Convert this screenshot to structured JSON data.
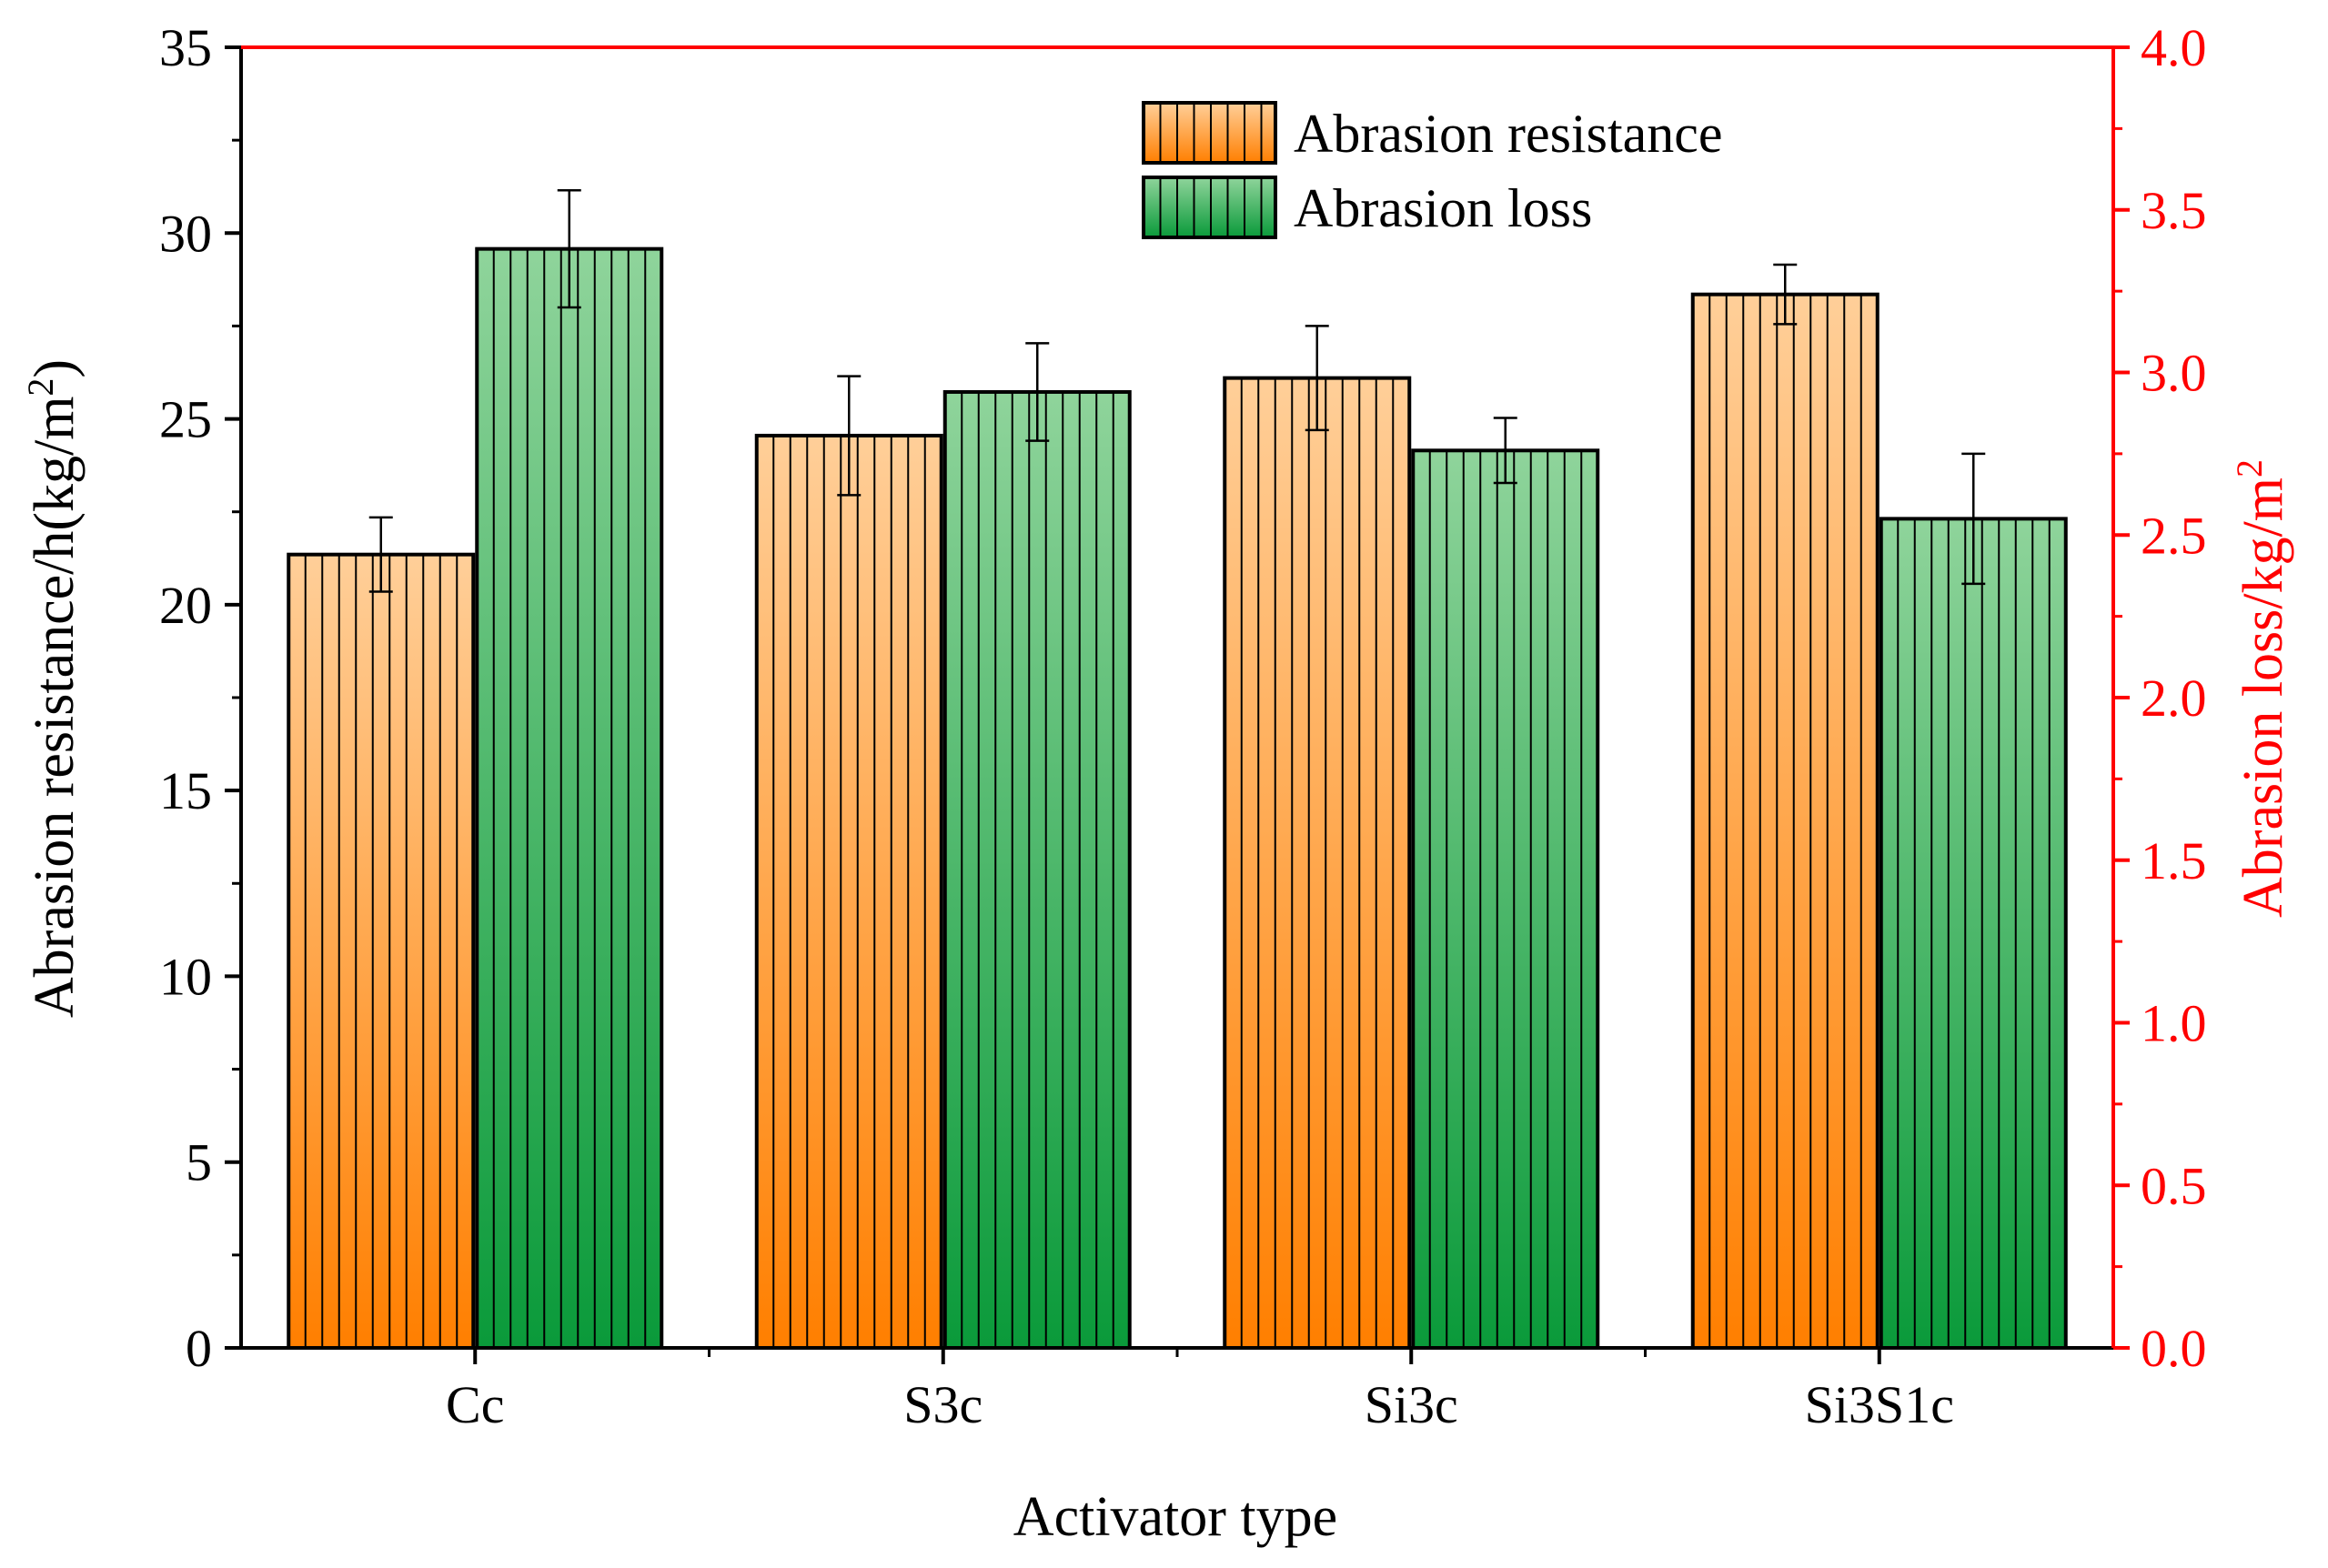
{
  "chart_data": {
    "type": "bar",
    "xlabel": "Activator type",
    "categories": [
      "Cc",
      "S3c",
      "Si3c",
      "Si3S1c"
    ],
    "y_left": {
      "label": "Abrasion resistance/h(kg/m",
      "label_sup": "2",
      "label_close": ")",
      "ylim": [
        0,
        35
      ],
      "major_ticks": [
        0,
        5,
        10,
        15,
        20,
        25,
        30,
        35
      ],
      "tick_labels": [
        "0",
        "5",
        "10",
        "15",
        "20",
        "25",
        "30",
        "35"
      ]
    },
    "y_right": {
      "label": "Abrasion loss/kg/m",
      "label_sup": "2",
      "ylim": [
        0,
        4.0
      ],
      "major_ticks": [
        0,
        0.5,
        1.0,
        1.5,
        2.0,
        2.5,
        3.0,
        3.5,
        4.0
      ],
      "tick_labels": [
        "0.0",
        "0.5",
        "1.0",
        "1.5",
        "2.0",
        "2.5",
        "3.0",
        "3.5",
        "4.0"
      ]
    },
    "series": [
      {
        "name": "Abrasion resistance",
        "axis": "left",
        "values": [
          21.35,
          24.55,
          26.1,
          28.35
        ],
        "errors": [
          1.0,
          1.6,
          1.4,
          0.8
        ],
        "gradient": [
          "#ffcf99",
          "#ff7f00"
        ]
      },
      {
        "name": "Abrasion loss",
        "axis": "right",
        "values": [
          3.38,
          2.94,
          2.76,
          2.55
        ],
        "errors": [
          0.18,
          0.15,
          0.1,
          0.2
        ],
        "gradient": [
          "#8fd49b",
          "#0a9a3a"
        ]
      }
    ],
    "legend_position": "top-center",
    "colors": {
      "left_axis": "#000000",
      "right_axis": "#ff0000",
      "hatch": "#000000"
    }
  }
}
